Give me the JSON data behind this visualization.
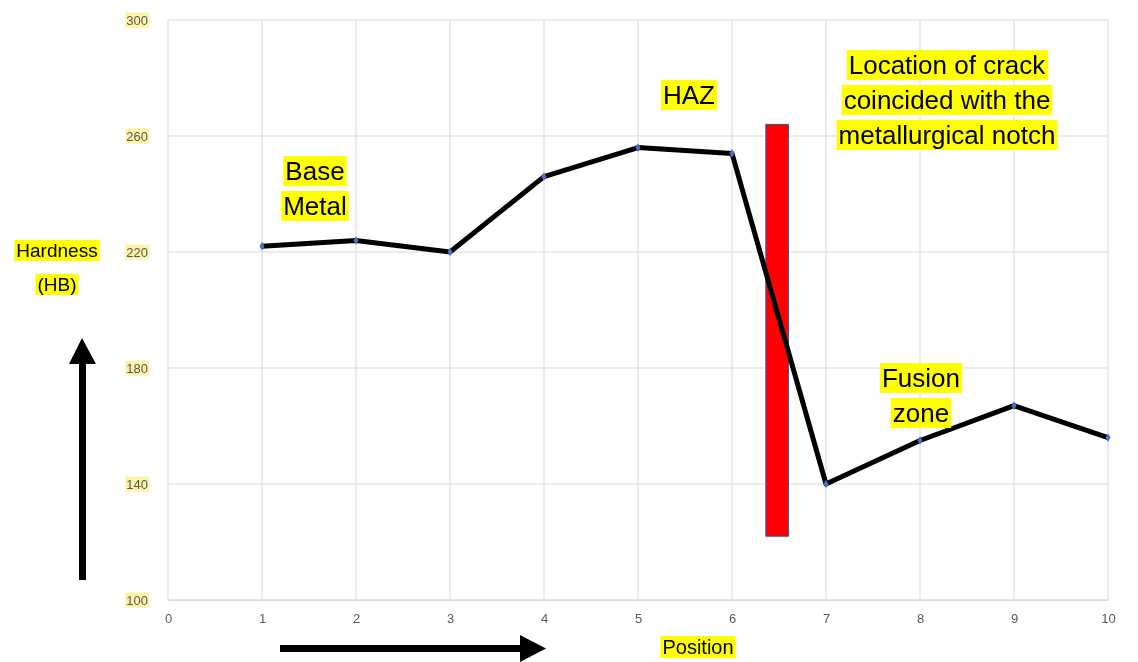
{
  "chart_data": {
    "type": "line",
    "xlabel": "Position",
    "ylabel": "Hardness (HB)",
    "x": [
      1,
      2,
      3,
      4,
      5,
      6,
      7,
      8,
      9,
      10
    ],
    "series": [
      {
        "color": "#000000",
        "values": [
          222,
          224,
          220,
          246,
          256,
          254,
          140,
          155,
          167,
          156
        ]
      }
    ],
    "xlim": [
      0,
      10
    ],
    "xticks": [
      0,
      1,
      2,
      3,
      4,
      5,
      6,
      7,
      8,
      9,
      10
    ],
    "ylim": [
      100,
      300
    ],
    "yticks": [
      100,
      140,
      180,
      220,
      260,
      300
    ],
    "grid": true,
    "marker": "diamond",
    "line_style": "solid",
    "bands": [
      {
        "axis": "x",
        "from": 6.36,
        "to": 6.6,
        "color": "#ff0000"
      }
    ],
    "annotations": [
      "Base Metal",
      "HAZ",
      "Location of crack coincided with the metallurgical notch",
      "Fusion zone"
    ]
  }
}
